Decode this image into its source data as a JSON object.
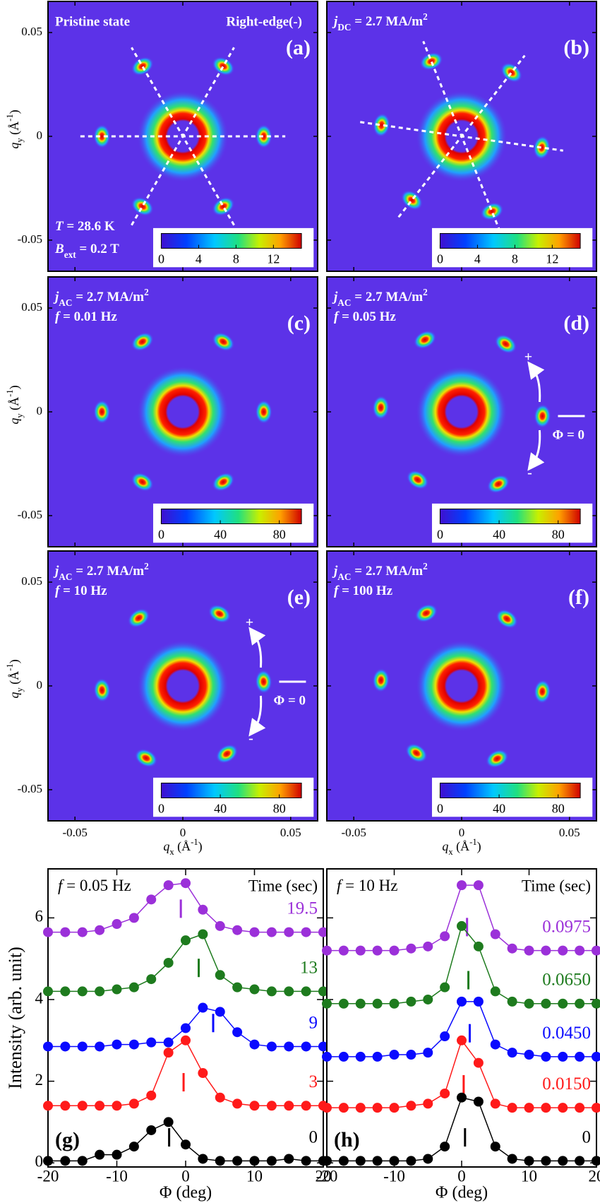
{
  "chart_data": [
    {
      "type": "image",
      "top_left": [
        "Pristine state"
      ],
      "top_right": "Right-edge(-)",
      "label": "(a)",
      "bottom_left": [
        [
          {
            "i": "T"
          },
          " = 28.6 K"
        ],
        [
          {
            "i": "B"
          },
          {
            "sub": "ext"
          },
          " = 0.2 T"
        ]
      ],
      "ylabel": [
        {
          "i": "q"
        },
        {
          "sub": "y"
        },
        " (Å",
        {
          "sup": "-1"
        },
        ")"
      ],
      "xlim": [
        -0.0625,
        0.0625
      ],
      "ylim": [
        -0.065,
        0.065
      ],
      "xticks": [
        -0.05,
        0,
        0.05
      ],
      "yticks": [
        -0.05,
        0,
        0.05
      ],
      "colorbar": {
        "lim": [
          0,
          15
        ],
        "ticks": [
          0,
          4,
          8,
          12
        ]
      }
    },
    {
      "type": "image",
      "top_left": [
        [
          {
            "i": "j"
          },
          {
            "sub": "DC"
          },
          " = 2.7 MA/m",
          {
            "sup": "2"
          }
        ]
      ],
      "label": "(b)",
      "xlim": [
        -0.0625,
        0.0625
      ],
      "ylim": [
        -0.065,
        0.065
      ],
      "xticks": [
        -0.05,
        0,
        0.05
      ],
      "yticks": [
        -0.05,
        0,
        0.05
      ],
      "colorbar": {
        "lim": [
          0,
          15
        ],
        "ticks": [
          0,
          4,
          8,
          12
        ]
      }
    },
    {
      "type": "image",
      "top_left": [
        [
          {
            "i": "j"
          },
          {
            "sub": "AC"
          },
          " = 2.7 MA/m",
          {
            "sup": "2"
          }
        ],
        [
          {
            "i": "f"
          },
          " = 0.01 Hz"
        ]
      ],
      "label": "(c)",
      "ylabel": [
        {
          "i": "q"
        },
        {
          "sub": "y"
        },
        " (Å",
        {
          "sup": "-1"
        },
        ")"
      ],
      "xlim": [
        -0.0625,
        0.0625
      ],
      "ylim": [
        -0.065,
        0.065
      ],
      "xticks": [
        -0.05,
        0,
        0.05
      ],
      "yticks": [
        -0.05,
        0,
        0.05
      ],
      "colorbar": {
        "lim": [
          0,
          95
        ],
        "ticks": [
          0,
          40,
          80
        ]
      }
    },
    {
      "type": "image",
      "top_left": [
        [
          {
            "i": "j"
          },
          {
            "sub": "AC"
          },
          " = 2.7 MA/m",
          {
            "sup": "2"
          }
        ],
        [
          {
            "i": "f"
          },
          " = 0.05 Hz"
        ]
      ],
      "label": "(d)",
      "plus": "+",
      "minus": "-",
      "phi_label": "Φ = 0",
      "xlim": [
        -0.0625,
        0.0625
      ],
      "ylim": [
        -0.065,
        0.065
      ],
      "xticks": [
        -0.05,
        0,
        0.05
      ],
      "yticks": [
        -0.05,
        0,
        0.05
      ],
      "colorbar": {
        "lim": [
          0,
          95
        ],
        "ticks": [
          0,
          40,
          80
        ]
      }
    },
    {
      "type": "image",
      "top_left": [
        [
          {
            "i": "j"
          },
          {
            "sub": "AC"
          },
          " = 2.7 MA/m",
          {
            "sup": "2"
          }
        ],
        [
          {
            "i": "f"
          },
          " = 10 Hz"
        ]
      ],
      "label": "(e)",
      "plus": "+",
      "minus": "-",
      "phi_label": "Φ = 0",
      "ylabel": [
        {
          "i": "q"
        },
        {
          "sub": "y"
        },
        " (Å",
        {
          "sup": "-1"
        },
        ")"
      ],
      "xlabel": [
        {
          "i": "q"
        },
        {
          "sub": "x"
        },
        " (Å",
        {
          "sup": "-1"
        },
        ")"
      ],
      "xlim": [
        -0.0625,
        0.0625
      ],
      "ylim": [
        -0.065,
        0.065
      ],
      "xticks": [
        -0.05,
        0,
        0.05
      ],
      "yticks": [
        -0.05,
        0,
        0.05
      ],
      "colorbar": {
        "lim": [
          0,
          95
        ],
        "ticks": [
          0,
          40,
          80
        ]
      }
    },
    {
      "type": "image",
      "top_left": [
        [
          {
            "i": "j"
          },
          {
            "sub": "AC"
          },
          " = 2.7 MA/m",
          {
            "sup": "2"
          }
        ],
        [
          {
            "i": "f"
          },
          " = 100 Hz"
        ]
      ],
      "label": "(f)",
      "xlabel": [
        {
          "i": "q"
        },
        {
          "sub": "x"
        },
        " (Å",
        {
          "sup": "-1"
        },
        ")"
      ],
      "xlim": [
        -0.0625,
        0.0625
      ],
      "ylim": [
        -0.065,
        0.065
      ],
      "xticks": [
        -0.05,
        0,
        0.05
      ],
      "yticks": [
        -0.05,
        0,
        0.05
      ],
      "colorbar": {
        "lim": [
          0,
          95
        ],
        "ticks": [
          0,
          40,
          80
        ]
      }
    },
    {
      "type": "line",
      "annotation": [
        {
          "i": "f"
        },
        " = 0.05 Hz"
      ],
      "legend_title": "Time (sec)",
      "label": "(g)",
      "xlabel": "Φ (deg)",
      "ylabel": "Intensity (arb. unit)",
      "xlim": [
        -20,
        20
      ],
      "xticks": [
        -20,
        -10,
        0,
        10,
        20
      ],
      "ylim": [
        -0.1,
        7.2
      ],
      "yticks": [
        0,
        2,
        4,
        6
      ],
      "x": [
        -20,
        -17.5,
        -15,
        -12.5,
        -10,
        -7.5,
        -5,
        -2.5,
        0,
        2.5,
        5,
        7.5,
        10,
        12.5,
        15,
        17.5,
        20
      ],
      "series": [
        {
          "name": "19.5",
          "color": "#9b30d9",
          "peak": -0.7,
          "values": [
            5.65,
            5.65,
            5.65,
            5.7,
            5.85,
            6.0,
            6.45,
            6.8,
            6.85,
            6.2,
            5.8,
            5.7,
            5.65,
            5.65,
            5.65,
            5.65,
            5.65
          ]
        },
        {
          "name": "13",
          "color": "#1e7b1e",
          "peak": 1.9,
          "values": [
            4.2,
            4.2,
            4.2,
            4.2,
            4.25,
            4.3,
            4.5,
            4.9,
            5.45,
            5.6,
            4.6,
            4.3,
            4.25,
            4.2,
            4.2,
            4.2,
            4.2
          ]
        },
        {
          "name": "9",
          "color": "#0a0aff",
          "peak": 4.0,
          "values": [
            2.85,
            2.85,
            2.85,
            2.85,
            2.9,
            2.9,
            2.95,
            2.95,
            3.3,
            3.8,
            3.7,
            3.2,
            2.9,
            2.85,
            2.85,
            2.85,
            2.85
          ]
        },
        {
          "name": "3",
          "color": "#ff1a1a",
          "peak": -0.3,
          "values": [
            1.4,
            1.4,
            1.4,
            1.4,
            1.4,
            1.45,
            1.65,
            2.7,
            3.0,
            2.2,
            1.6,
            1.45,
            1.4,
            1.4,
            1.4,
            1.4,
            1.4
          ]
        },
        {
          "name": "0",
          "color": "#000000",
          "peak": -2.4,
          "values": [
            0.05,
            0.05,
            0.05,
            0.2,
            0.2,
            0.4,
            0.8,
            1.0,
            0.45,
            0.1,
            0.05,
            0.05,
            0.05,
            0.05,
            0.1,
            0.05,
            0.05
          ]
        }
      ]
    },
    {
      "type": "line",
      "annotation": [
        {
          "i": "f"
        },
        " = 10 Hz"
      ],
      "legend_title": "Time (sec)",
      "label": "(h)",
      "xlabel": "Φ (deg)",
      "xlim": [
        -20,
        20
      ],
      "xticks": [
        -20,
        -10,
        0,
        10,
        20
      ],
      "ylim": [
        -0.1,
        7.2
      ],
      "yticks": [
        0,
        2,
        4,
        6
      ],
      "x": [
        -20,
        -17.5,
        -15,
        -12.5,
        -10,
        -7.5,
        -5,
        -2.5,
        0,
        2.5,
        5,
        7.5,
        10,
        12.5,
        15,
        17.5,
        20
      ],
      "series": [
        {
          "name": "0.0975",
          "color": "#9b30d9",
          "peak": 0.8,
          "values": [
            5.2,
            5.2,
            5.2,
            5.2,
            5.2,
            5.25,
            5.3,
            5.55,
            6.8,
            6.8,
            5.6,
            5.25,
            5.2,
            5.2,
            5.2,
            5.2,
            5.2
          ]
        },
        {
          "name": "0.0650",
          "color": "#1e7b1e",
          "peak": 1.0,
          "values": [
            3.9,
            3.9,
            3.9,
            3.9,
            3.9,
            3.95,
            4.0,
            4.3,
            5.8,
            5.3,
            4.2,
            3.95,
            3.9,
            3.9,
            3.9,
            3.9,
            3.9
          ]
        },
        {
          "name": "0.0450",
          "color": "#0a0aff",
          "peak": 1.2,
          "values": [
            2.6,
            2.6,
            2.6,
            2.6,
            2.65,
            2.65,
            2.7,
            3.1,
            3.95,
            3.95,
            2.9,
            2.7,
            2.65,
            2.6,
            2.6,
            2.6,
            2.6
          ]
        },
        {
          "name": "0.0150",
          "color": "#ff1a1a",
          "peak": 0.3,
          "values": [
            1.35,
            1.35,
            1.35,
            1.35,
            1.35,
            1.4,
            1.45,
            1.7,
            3.0,
            2.45,
            1.45,
            1.35,
            1.35,
            1.35,
            1.35,
            1.35,
            1.35
          ]
        },
        {
          "name": "0",
          "color": "#000000",
          "peak": 0.5,
          "values": [
            0.05,
            0.05,
            0.05,
            0.05,
            0.05,
            0.05,
            0.1,
            0.4,
            1.6,
            1.5,
            0.4,
            0.1,
            0.05,
            0.05,
            0.05,
            0.05,
            0.05
          ]
        }
      ]
    }
  ]
}
